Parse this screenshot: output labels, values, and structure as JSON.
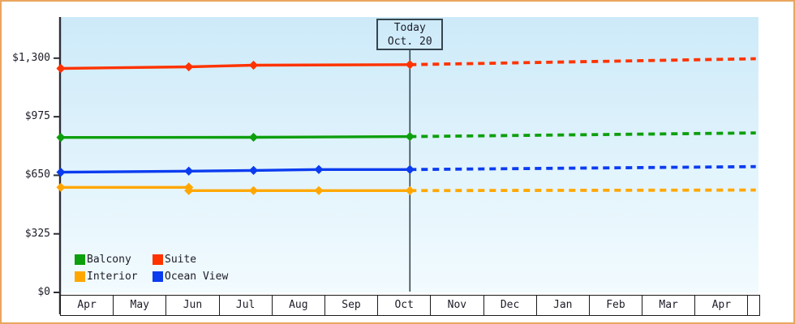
{
  "frame": {
    "border_color": "#e9a55e",
    "background": "#ffffff"
  },
  "today_marker": {
    "line1": "Today",
    "line2": "Oct. 20"
  },
  "legend": {
    "items": [
      {
        "label": "Balcony",
        "color": "#0d9f0d"
      },
      {
        "label": "Suite",
        "color": "#ff3300"
      },
      {
        "label": "Interior",
        "color": "#ffa700"
      },
      {
        "label": "Ocean View",
        "color": "#0b3cf0"
      }
    ]
  },
  "chart_data": {
    "type": "line",
    "title": "",
    "xlabel": "",
    "ylabel": "",
    "x_axis": {
      "months": [
        "Apr",
        "May",
        "Jun",
        "Jul",
        "Aug",
        "Sep",
        "Oct",
        "Nov",
        "Dec",
        "Jan",
        "Feb",
        "Mar",
        "Apr"
      ],
      "right_edge_month_x": 13.2
    },
    "y_axis": {
      "ticks": [
        0,
        325,
        650,
        975,
        1300
      ],
      "tick_labels": [
        "$0",
        "$325",
        "$650",
        "$975",
        "$1,300"
      ],
      "ylim": [
        0,
        1530
      ],
      "grid": false
    },
    "today": {
      "month_x": 6.63,
      "label": "Today Oct. 20"
    },
    "legend_position": "bottom-left-inside",
    "series": [
      {
        "name": "Suite",
        "color": "#ff3300",
        "solid_points": [
          {
            "x": 0,
            "price": 1243
          },
          {
            "x": 2.43,
            "price": 1252
          },
          {
            "x": 3.66,
            "price": 1261
          },
          {
            "x": 6.63,
            "price": 1264
          }
        ],
        "markers": [
          {
            "x": 0,
            "price": 1243
          },
          {
            "x": 2.43,
            "price": 1252
          },
          {
            "x": 3.66,
            "price": 1261
          },
          {
            "x": 6.63,
            "price": 1264
          }
        ],
        "forecast_points": [
          {
            "x": 6.63,
            "price": 1264
          },
          {
            "x": 13.2,
            "price": 1297
          }
        ]
      },
      {
        "name": "Balcony",
        "color": "#0d9f0d",
        "solid_points": [
          {
            "x": 0,
            "price": 860
          },
          {
            "x": 3.66,
            "price": 861
          },
          {
            "x": 6.63,
            "price": 865
          }
        ],
        "markers": [
          {
            "x": 0,
            "price": 860
          },
          {
            "x": 3.66,
            "price": 861
          },
          {
            "x": 6.63,
            "price": 865
          }
        ],
        "forecast_points": [
          {
            "x": 6.63,
            "price": 865
          },
          {
            "x": 13.2,
            "price": 885
          }
        ]
      },
      {
        "name": "Ocean View",
        "color": "#0b3cf0",
        "solid_points": [
          {
            "x": 0,
            "price": 667
          },
          {
            "x": 2.43,
            "price": 673
          },
          {
            "x": 3.66,
            "price": 677
          },
          {
            "x": 4.9,
            "price": 682
          },
          {
            "x": 6.63,
            "price": 682
          }
        ],
        "markers": [
          {
            "x": 0,
            "price": 667
          },
          {
            "x": 2.43,
            "price": 673
          },
          {
            "x": 3.66,
            "price": 677
          },
          {
            "x": 4.9,
            "price": 682
          },
          {
            "x": 6.63,
            "price": 682
          }
        ],
        "forecast_points": [
          {
            "x": 6.63,
            "price": 682
          },
          {
            "x": 13.2,
            "price": 698
          }
        ]
      },
      {
        "name": "Interior",
        "color": "#ffa700",
        "solid_points": [
          {
            "x": 0,
            "price": 583
          },
          {
            "x": 2.43,
            "price": 583
          },
          {
            "x": 2.43,
            "price": 565
          },
          {
            "x": 6.63,
            "price": 565
          }
        ],
        "markers": [
          {
            "x": 0,
            "price": 583
          },
          {
            "x": 2.43,
            "price": 583
          },
          {
            "x": 2.43,
            "price": 565
          },
          {
            "x": 3.66,
            "price": 565
          },
          {
            "x": 4.9,
            "price": 565
          },
          {
            "x": 6.63,
            "price": 565
          }
        ],
        "forecast_points": [
          {
            "x": 6.63,
            "price": 565
          },
          {
            "x": 13.2,
            "price": 568
          }
        ]
      }
    ]
  }
}
